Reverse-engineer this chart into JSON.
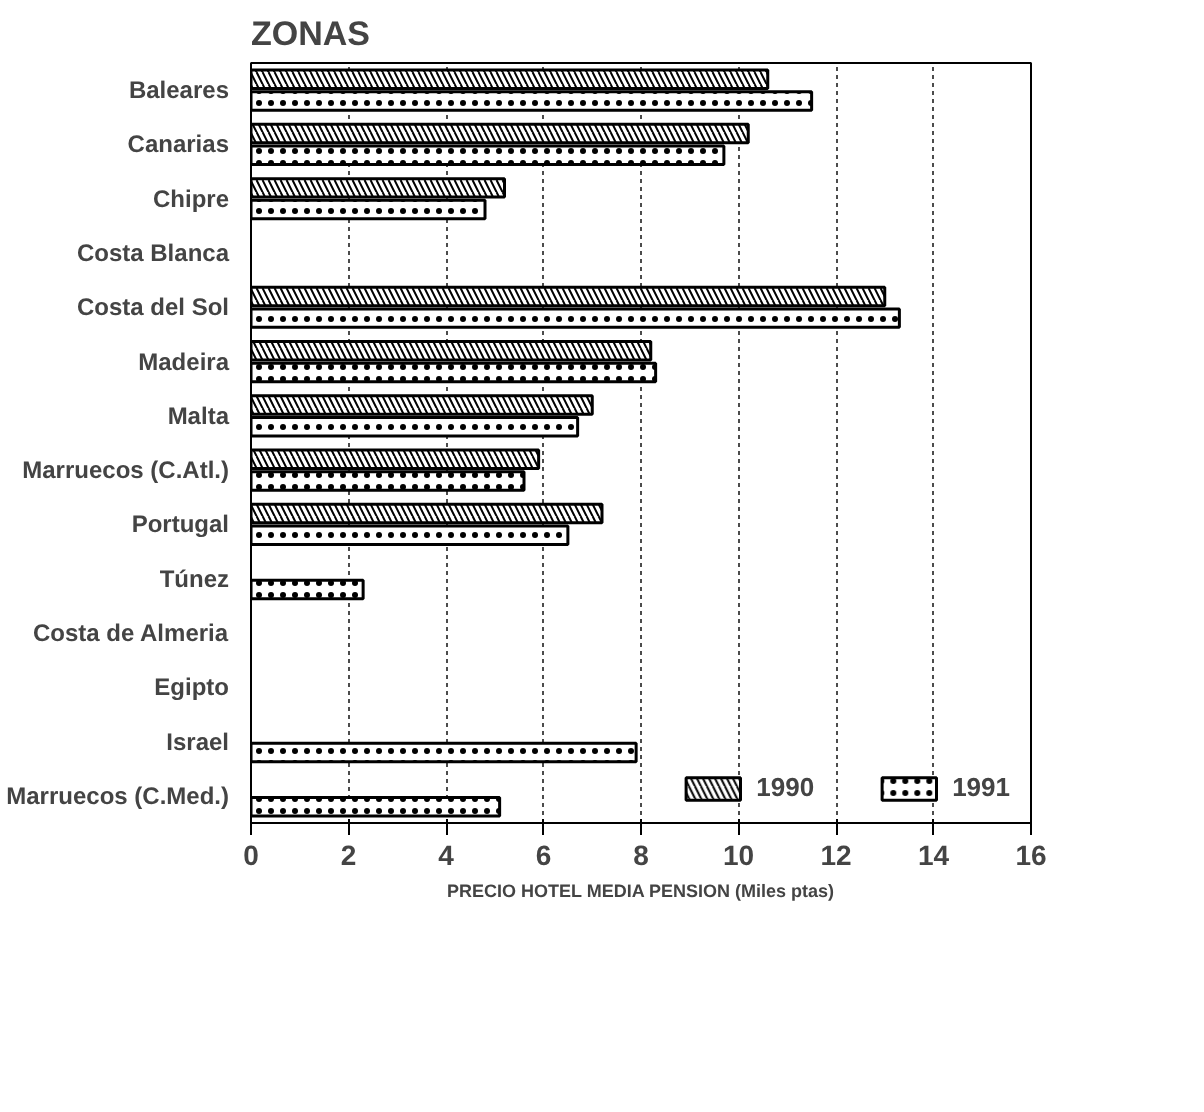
{
  "chart_data": {
    "type": "bar",
    "orientation": "horizontal",
    "title": "ZONAS",
    "xlabel": "PRECIO HOTEL MEDIA PENSION (Miles ptas)",
    "categories": [
      "Baleares",
      "Canarias",
      "Chipre",
      "Costa Blanca",
      "Costa del Sol",
      "Madeira",
      "Malta",
      "Marruecos (C.Atl.)",
      "Portugal",
      "Túnez",
      "Costa de Almeria",
      "Egipto",
      "Israel",
      "Marruecos (C.Med.)"
    ],
    "series": [
      {
        "name": "1990",
        "color": "#ffffff",
        "values": [
          10.6,
          10.2,
          5.2,
          null,
          13.0,
          8.2,
          7.0,
          5.9,
          7.2,
          null,
          null,
          null,
          null,
          null
        ]
      },
      {
        "name": "1991",
        "color": "#ffffff",
        "values": [
          11.5,
          9.7,
          4.8,
          null,
          13.3,
          8.3,
          6.7,
          5.6,
          6.5,
          2.3,
          null,
          null,
          7.9,
          5.1
        ]
      }
    ],
    "xlim": [
      0,
      16
    ],
    "xticks": [
      0,
      2,
      4,
      6,
      8,
      10,
      12,
      14,
      16
    ],
    "grid": "x",
    "legend": "bottom right"
  }
}
